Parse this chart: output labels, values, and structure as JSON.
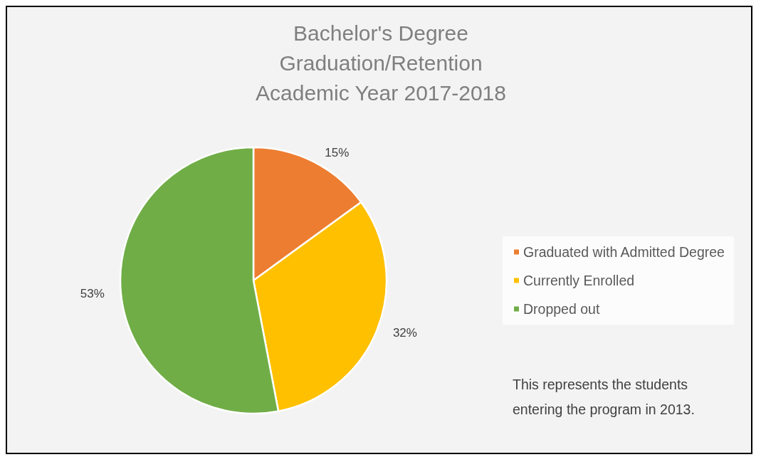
{
  "chart_data": {
    "type": "pie",
    "title": "Bachelor's Degree\nGraduation/Retention\nAcademic Year 2017-2018",
    "categories": [
      "Graduated with Admitted Degree",
      "Currently Enrolled",
      "Dropped out"
    ],
    "values": [
      15,
      32,
      53
    ],
    "colors": [
      "#ed7d31",
      "#ffc000",
      "#70ad47"
    ],
    "value_labels": [
      "15%",
      "32%",
      "53%"
    ],
    "legend": "right",
    "annotations": [
      "This represents the students entering the program in 2013."
    ]
  }
}
